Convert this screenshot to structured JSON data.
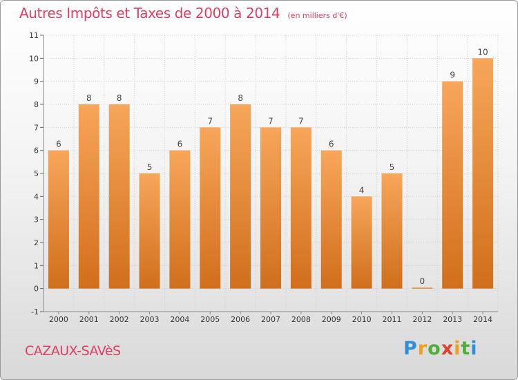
{
  "header": {
    "title": "Autres Impôts et Taxes de 2000 à 2014",
    "unit": "(en milliers d'€)"
  },
  "footer": {
    "city": "CAZAUX-SAVèS",
    "brand_parts": [
      "P",
      "r",
      "o",
      "x",
      "i",
      "t",
      "i"
    ]
  },
  "colors": {
    "title": "#dd3e63",
    "bar_light": "#f7a65a",
    "bar_dark": "#d06f1c",
    "grid": "#cfcfcf"
  },
  "chart_data": {
    "type": "bar",
    "categories": [
      "2000",
      "2001",
      "2002",
      "2003",
      "2004",
      "2005",
      "2006",
      "2007",
      "2008",
      "2009",
      "2010",
      "2011",
      "2012",
      "2013",
      "2014"
    ],
    "values": [
      6,
      8,
      8,
      5,
      6,
      7,
      8,
      7,
      7,
      6,
      4,
      5,
      0,
      9,
      10
    ],
    "data_labels": [
      "6",
      "8",
      "8",
      "5",
      "6",
      "7",
      "8",
      "7",
      "7",
      "6",
      "4",
      "5",
      "0",
      "9",
      "10"
    ],
    "y_ticks": [
      "-1",
      "0",
      "1",
      "2",
      "3",
      "4",
      "5",
      "6",
      "7",
      "8",
      "9",
      "10",
      "11"
    ],
    "ylim": [
      -1,
      11
    ],
    "grid": true,
    "legend": "none"
  }
}
